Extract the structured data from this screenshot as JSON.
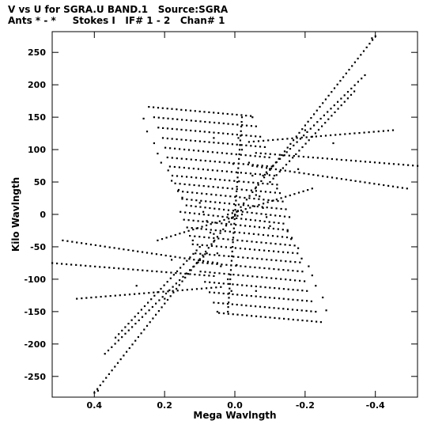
{
  "chart_data": {
    "type": "scatter",
    "title": "V vs U for SGRA.U BAND.1   Source:SGRA",
    "subtitle": "Ants * - *     Stokes I   IF# 1 - 2   Chan# 1",
    "xlabel": "Mega Wavlngth",
    "ylabel": "Kilo Wavlngth",
    "xlim": [
      0.52,
      -0.52
    ],
    "ylim": [
      -282,
      282
    ],
    "x_ticks": [
      0.4,
      0.2,
      0.0,
      -0.2,
      -0.4
    ],
    "x_tick_labels": [
      "0.4",
      "0.2",
      "0.0",
      "-0.2",
      "-0.4"
    ],
    "y_ticks": [
      250,
      200,
      150,
      100,
      50,
      0,
      -50,
      -100,
      -150,
      -200,
      -250
    ],
    "y_tick_labels": [
      "250",
      "200",
      "150",
      "100",
      "50",
      "0",
      "-50",
      "-100",
      "-150",
      "-200",
      "-250"
    ],
    "grid": false,
    "legend": "none",
    "marker_color": "#000000",
    "series": [
      {
        "points": [
          [
            0.26,
            148
          ],
          [
            -0.01,
            118
          ],
          [
            0.25,
            128
          ],
          [
            -0.02,
            100
          ],
          [
            0.23,
            110
          ],
          [
            -0.04,
            80
          ],
          [
            0.22,
            94
          ],
          [
            -0.05,
            60
          ],
          [
            0.21,
            80
          ],
          [
            -0.06,
            42
          ],
          [
            0.19,
            68
          ],
          [
            -0.07,
            28
          ],
          [
            0.18,
            52
          ],
          [
            -0.08,
            10
          ],
          [
            0.16,
            38
          ],
          [
            -0.09,
            -4
          ],
          [
            0.15,
            26
          ],
          [
            -0.1,
            -18
          ],
          [
            -0.26,
            -148
          ],
          [
            0.01,
            -118
          ],
          [
            -0.25,
            -128
          ],
          [
            0.02,
            -100
          ],
          [
            -0.23,
            -110
          ],
          [
            0.04,
            -80
          ],
          [
            -0.22,
            -94
          ],
          [
            0.05,
            -60
          ],
          [
            -0.21,
            -80
          ],
          [
            0.06,
            -42
          ],
          [
            -0.19,
            -68
          ],
          [
            0.07,
            -28
          ],
          [
            -0.18,
            -52
          ],
          [
            0.08,
            -10
          ],
          [
            -0.16,
            -38
          ],
          [
            0.09,
            4
          ],
          [
            -0.15,
            -26
          ],
          [
            0.1,
            18
          ],
          [
            0.06,
            118
          ],
          [
            0.005,
            78
          ],
          [
            -0.06,
            30
          ],
          [
            -0.05,
            150
          ],
          [
            -0.18,
            70
          ],
          [
            -0.12,
            40
          ],
          [
            -0.28,
            110
          ],
          [
            0.28,
            -110
          ],
          [
            0.18,
            -70
          ],
          [
            0.12,
            -40
          ],
          [
            0.05,
            -150
          ],
          [
            -0.06,
            -118
          ],
          [
            -0.005,
            -78
          ],
          [
            0.06,
            -30
          ],
          [
            -0.39,
            272
          ],
          [
            -0.2,
            130
          ],
          [
            0.0,
            -2
          ],
          [
            0.39,
            -272
          ],
          [
            0.2,
            -130
          ]
        ]
      }
    ],
    "bands": [
      {
        "from": [
          0.245,
          166
        ],
        "to": [
          -0.045,
          152
        ]
      },
      {
        "from": [
          0.23,
          150
        ],
        "to": [
          -0.06,
          136
        ]
      },
      {
        "from": [
          0.218,
          134
        ],
        "to": [
          -0.072,
          120
        ]
      },
      {
        "from": [
          0.205,
          118
        ],
        "to": [
          -0.085,
          104
        ]
      },
      {
        "from": [
          0.198,
          103
        ],
        "to": [
          -0.098,
          88
        ]
      },
      {
        "from": [
          0.192,
          88
        ],
        "to": [
          -0.105,
          74
        ]
      },
      {
        "from": [
          0.185,
          74
        ],
        "to": [
          -0.112,
          60
        ]
      },
      {
        "from": [
          0.178,
          60
        ],
        "to": [
          -0.12,
          46
        ]
      },
      {
        "from": [
          0.17,
          48
        ],
        "to": [
          -0.128,
          33
        ]
      },
      {
        "from": [
          0.162,
          36
        ],
        "to": [
          -0.136,
          20
        ]
      },
      {
        "from": [
          0.15,
          24
        ],
        "to": [
          -0.145,
          8
        ]
      },
      {
        "from": [
          0.138,
          14
        ],
        "to": [
          -0.155,
          -4
        ]
      },
      {
        "from": [
          -0.245,
          -166
        ],
        "to": [
          0.045,
          -152
        ]
      },
      {
        "from": [
          -0.23,
          -150
        ],
        "to": [
          0.06,
          -136
        ]
      },
      {
        "from": [
          -0.218,
          -134
        ],
        "to": [
          0.072,
          -120
        ]
      },
      {
        "from": [
          -0.205,
          -118
        ],
        "to": [
          0.085,
          -104
        ]
      },
      {
        "from": [
          -0.198,
          -103
        ],
        "to": [
          0.098,
          -88
        ]
      },
      {
        "from": [
          -0.192,
          -88
        ],
        "to": [
          0.105,
          -74
        ]
      },
      {
        "from": [
          -0.185,
          -74
        ],
        "to": [
          0.112,
          -60
        ]
      },
      {
        "from": [
          -0.178,
          -60
        ],
        "to": [
          0.12,
          -46
        ]
      },
      {
        "from": [
          -0.17,
          -48
        ],
        "to": [
          0.128,
          -33
        ]
      },
      {
        "from": [
          -0.162,
          -36
        ],
        "to": [
          0.136,
          -20
        ]
      },
      {
        "from": [
          -0.15,
          -24
        ],
        "to": [
          0.145,
          -8
        ]
      },
      {
        "from": [
          -0.138,
          -14
        ],
        "to": [
          0.155,
          4
        ]
      },
      {
        "from": [
          0.0,
          0
        ],
        "to": [
          -0.4,
          275
        ]
      },
      {
        "from": [
          0.0,
          0
        ],
        "to": [
          0.4,
          -275
        ]
      },
      {
        "from": [
          -0.06,
          95
        ],
        "to": [
          -0.52,
          75
        ]
      },
      {
        "from": [
          -0.04,
          112
        ],
        "to": [
          -0.45,
          130
        ]
      },
      {
        "from": [
          -0.05,
          75
        ],
        "to": [
          -0.49,
          40
        ]
      },
      {
        "from": [
          0.06,
          -95
        ],
        "to": [
          0.52,
          -75
        ]
      },
      {
        "from": [
          0.04,
          -112
        ],
        "to": [
          0.45,
          -130
        ]
      },
      {
        "from": [
          0.05,
          -75
        ],
        "to": [
          0.49,
          -40
        ]
      },
      {
        "from": [
          -0.08,
          60
        ],
        "to": [
          -0.37,
          215
        ]
      },
      {
        "from": [
          -0.1,
          50
        ],
        "to": [
          -0.34,
          190
        ]
      },
      {
        "from": [
          0.08,
          -60
        ],
        "to": [
          0.37,
          -215
        ]
      },
      {
        "from": [
          0.1,
          -50
        ],
        "to": [
          0.34,
          -190
        ]
      },
      {
        "from": [
          0.02,
          0
        ],
        "to": [
          -0.22,
          40
        ]
      },
      {
        "from": [
          -0.02,
          0
        ],
        "to": [
          0.22,
          -40
        ]
      },
      {
        "from": [
          0.0,
          0
        ],
        "to": [
          -0.02,
          150
        ]
      },
      {
        "from": [
          0.0,
          0
        ],
        "to": [
          0.02,
          -150
        ]
      }
    ]
  }
}
